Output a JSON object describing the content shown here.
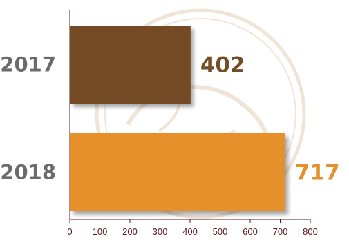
{
  "chart_data": {
    "type": "bar",
    "orientation": "horizontal",
    "categories": [
      "2017",
      "2018"
    ],
    "values": [
      402,
      717
    ],
    "bar_colors": [
      "#744c25",
      "#e5902a"
    ],
    "value_label_colors": [
      "#744c25",
      "#e5902a"
    ],
    "xticks": [
      "0",
      "100",
      "200",
      "300",
      "400",
      "500",
      "600",
      "700",
      "800"
    ],
    "xlim": [
      0,
      800
    ],
    "title": "",
    "xlabel": "",
    "ylabel": "",
    "grid": false,
    "legend": "none",
    "watermark": "logo"
  },
  "colors": {
    "axis": "#5a1a1a",
    "category_label": "#6b6b6b",
    "watermark": "#efe2d2"
  }
}
